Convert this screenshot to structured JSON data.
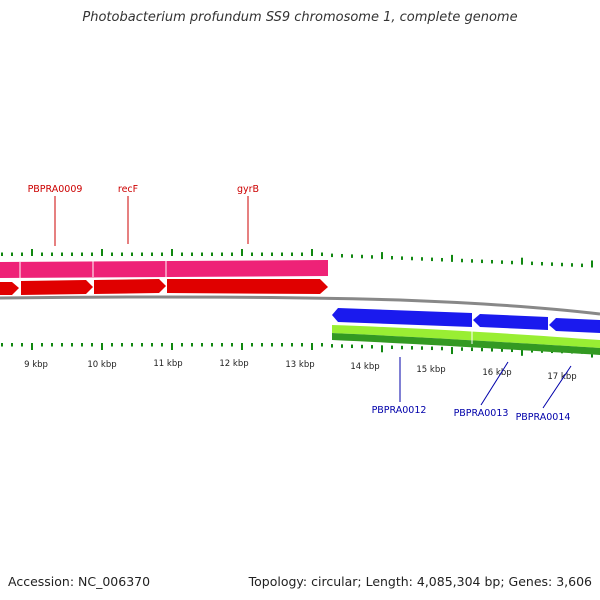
{
  "title": "Photobacterium profundum SS9 chromosome 1, complete genome",
  "footer": {
    "accession": "Accession: NC_006370",
    "stats": "Topology: circular; Length: 4,085,304 bp; Genes: 3,606"
  },
  "colors": {
    "forward_gene": "#e00000",
    "forward_cds": "#ee2277",
    "reverse_gene": "#1a1aee",
    "reverse_cds": "#99ee33",
    "reverse_cds_dark": "#339922",
    "backbone": "#888888",
    "tick": "#118811",
    "forward_label": "#cc0000",
    "reverse_label": "#0000aa"
  },
  "tick_labels": [
    "9 kbp",
    "10 kbp",
    "11 kbp",
    "12 kbp",
    "13 kbp",
    "14 kbp",
    "15 kbp",
    "16 kbp",
    "17 kbp"
  ],
  "genes": [
    {
      "label": "PBPRA0009",
      "strand": "forward"
    },
    {
      "label": "recF",
      "strand": "forward"
    },
    {
      "label": "gyrB",
      "strand": "forward"
    },
    {
      "label": "PBPRA0012",
      "strand": "reverse"
    },
    {
      "label": "PBPRA0013",
      "strand": "reverse"
    },
    {
      "label": "PBPRA0014",
      "strand": "reverse"
    }
  ]
}
